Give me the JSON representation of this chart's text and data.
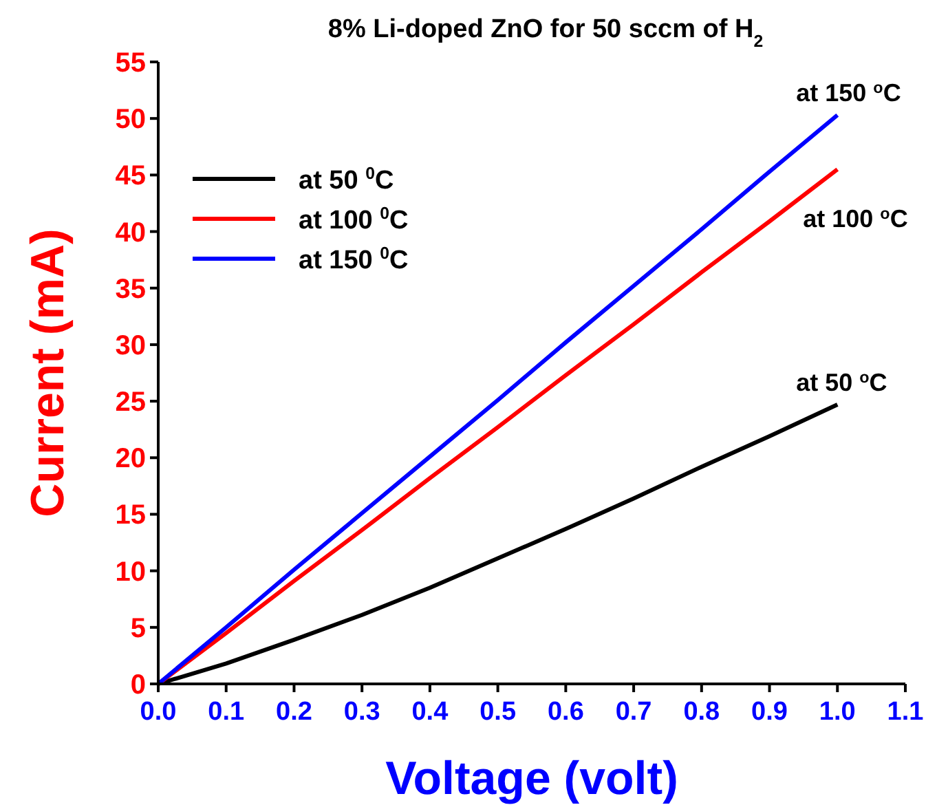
{
  "chart_data": {
    "type": "line",
    "title": "8% Li-doped ZnO for 50 sccm of H$_{2}$",
    "xlabel": "Voltage (volt)",
    "ylabel": "Current (mA)",
    "x": [
      0,
      0.1,
      0.2,
      0.3,
      0.4,
      0.5,
      0.6,
      0.7,
      0.8,
      0.9,
      1.0
    ],
    "series": [
      {
        "name": "at 50 $^{0}$C",
        "color": "#000000",
        "values": [
          0,
          1.8,
          3.9,
          6.1,
          8.5,
          11.1,
          13.7,
          16.4,
          19.2,
          21.9,
          24.7
        ]
      },
      {
        "name": "at 100 $^{0}$C",
        "color": "#ff0000",
        "values": [
          0,
          4.5,
          9.1,
          13.6,
          18.2,
          22.7,
          27.3,
          31.8,
          36.4,
          40.9,
          45.5
        ]
      },
      {
        "name": "at 150 $^{0}$C",
        "color": "#0000ff",
        "values": [
          0,
          5.0,
          10.1,
          15.1,
          20.1,
          25.1,
          30.2,
          35.2,
          40.2,
          45.3,
          50.3
        ]
      }
    ],
    "xlim": [
      0,
      1.1
    ],
    "xticks": [
      {
        "value": 0,
        "label": "0.0"
      },
      0.1,
      0.2,
      0.3,
      0.4,
      0.5,
      0.6,
      0.7,
      0.8,
      0.9,
      {
        "value": 1,
        "label": "1.0"
      },
      1.1
    ],
    "ylim": [
      0,
      55
    ],
    "yticks": [
      0,
      5,
      10,
      15,
      20,
      25,
      30,
      35,
      40,
      45,
      50,
      55
    ],
    "annotations": [
      "at 150 $^{o}$C",
      "at 100 $^{o}$C",
      "at 50 $^{o}$C"
    ],
    "legend": "top left",
    "grid": false,
    "marker": "none",
    "line_style": "solid"
  }
}
